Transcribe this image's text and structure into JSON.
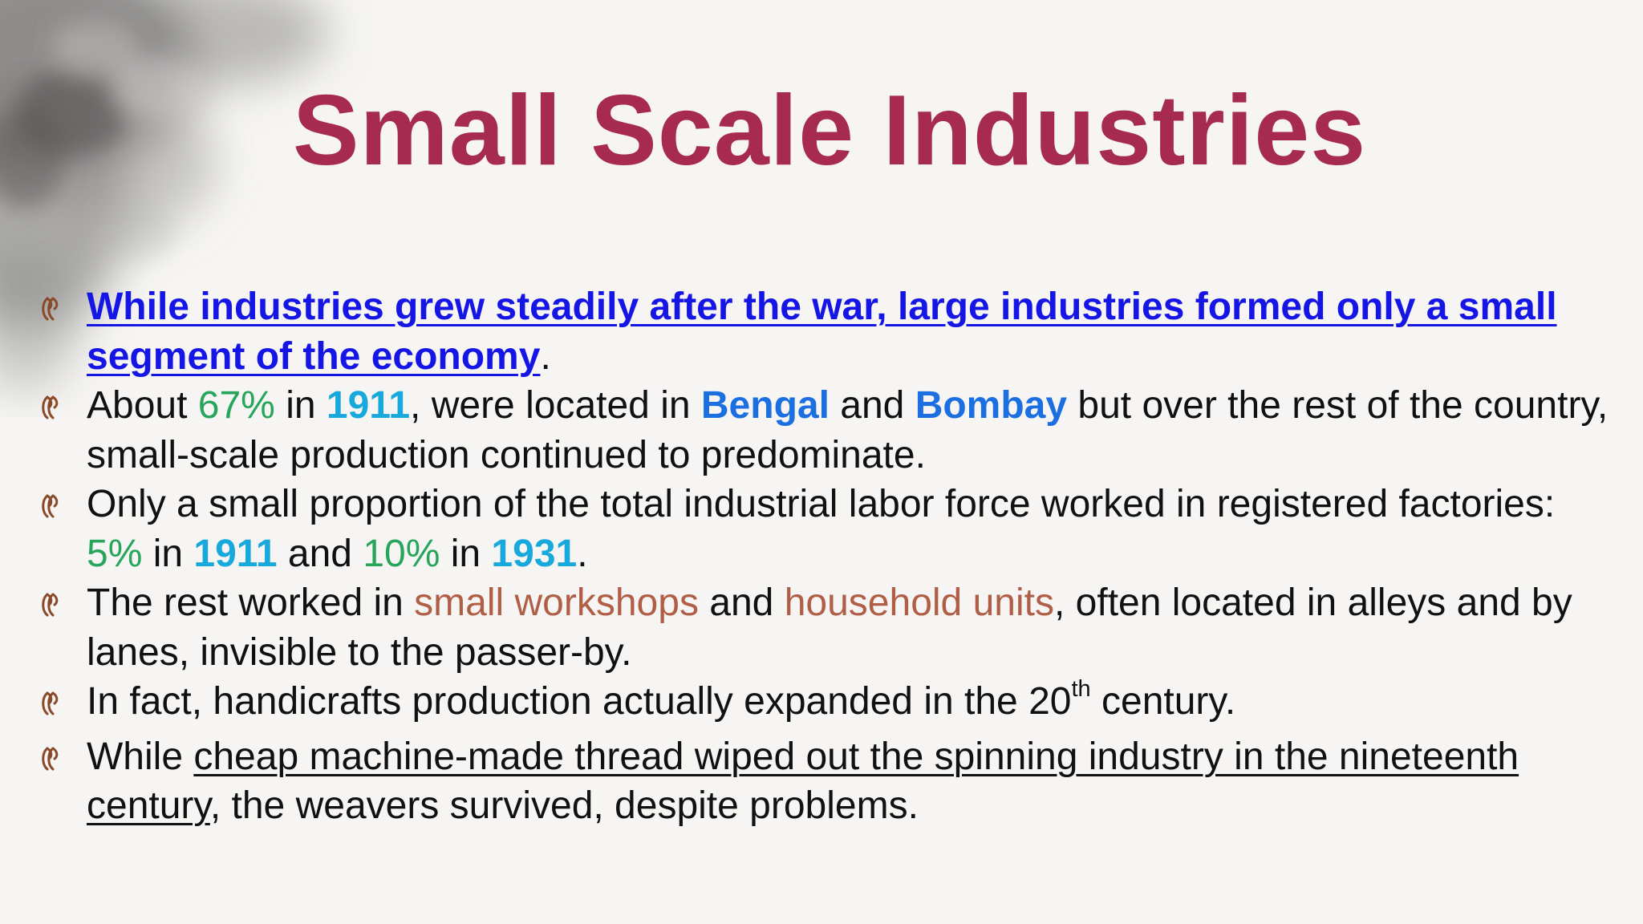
{
  "slide": {
    "title": "Small Scale Industries",
    "bullet_icon": "double-scroll-bullet-icon",
    "colors": {
      "title": "#a62a52",
      "link_blue": "#1515e6",
      "green": "#27a55a",
      "cyan": "#17a8dc",
      "royal_blue": "#1b6fe0",
      "brown": "#b05e46",
      "text": "#111111"
    }
  },
  "bullets": [
    {
      "a": "While industries grew steadily after the war, large industries formed only a small segment of the economy",
      "b": "."
    },
    {
      "a": "About ",
      "b": "67%",
      "c": " in ",
      "d": "1911",
      "e": ", were located in ",
      "f": "Bengal",
      "g": " and ",
      "h": "Bombay",
      "i": " but over the rest of the country, small-scale production continued to predominate."
    },
    {
      "a": "Only a small proportion of the total industrial labor force worked in registered factories: ",
      "b": "5%",
      "c": " in ",
      "d": "1911",
      "e": " and ",
      "f": "10%",
      "g": " in ",
      "h": "1931",
      "i": "."
    },
    {
      "a": "The rest worked in ",
      "b": "small workshops",
      "c": " and ",
      "d": "household units",
      "e": ", often located in alleys and by lanes, invisible to the passer-by."
    },
    {
      "a": "In fact, handicrafts production actually expanded in the 20",
      "b": "th",
      "c": " century."
    },
    {
      "a": "While ",
      "b": "cheap machine-made thread wiped out the spinning industry in the nineteenth century",
      "c": ", the weavers survived, despite problems."
    }
  ]
}
